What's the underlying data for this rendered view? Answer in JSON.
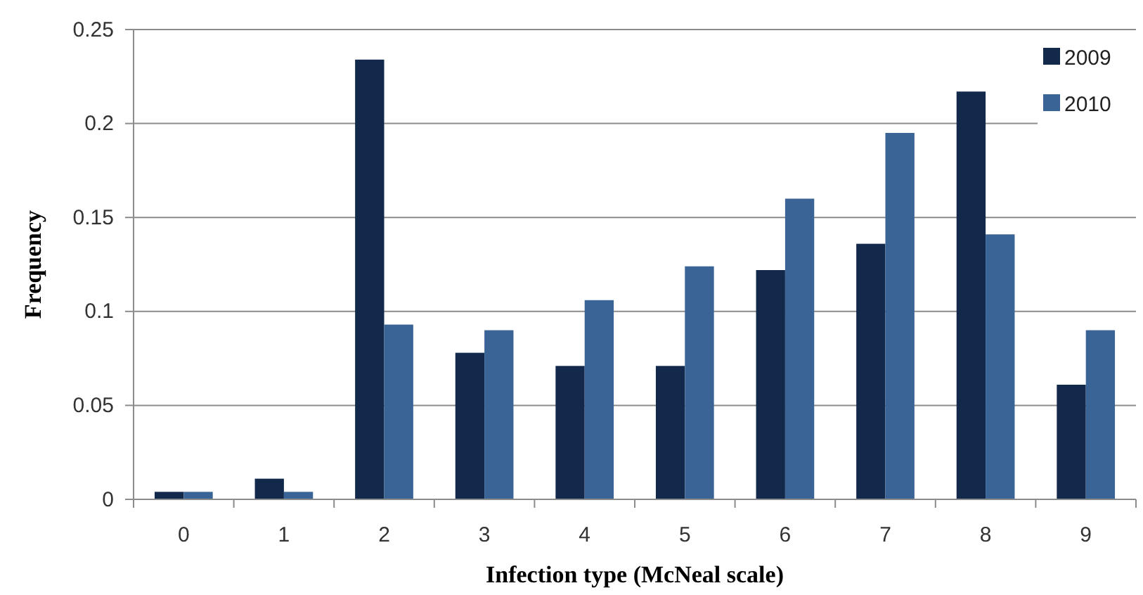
{
  "chart_data": {
    "type": "bar",
    "xlabel": "Infection type (McNeal scale)",
    "ylabel": "Frequency",
    "categories": [
      "0",
      "1",
      "2",
      "3",
      "4",
      "5",
      "6",
      "7",
      "8",
      "9"
    ],
    "series": [
      {
        "name": "2009",
        "color": "#13294b",
        "values": [
          0.004,
          0.011,
          0.234,
          0.078,
          0.071,
          0.071,
          0.122,
          0.136,
          0.217,
          0.061
        ]
      },
      {
        "name": "2010",
        "color": "#3a6496",
        "values": [
          0.004,
          0.004,
          0.093,
          0.09,
          0.106,
          0.124,
          0.16,
          0.195,
          0.141,
          0.09
        ]
      }
    ],
    "ylim": [
      0,
      0.25
    ],
    "yticks": [
      0,
      0.05,
      {
        "value": 0.1,
        "label": "0.1"
      },
      0.15,
      {
        "value": 0.2,
        "label": "0.2"
      },
      0.25
    ],
    "grid": "y",
    "legend": "top right"
  }
}
